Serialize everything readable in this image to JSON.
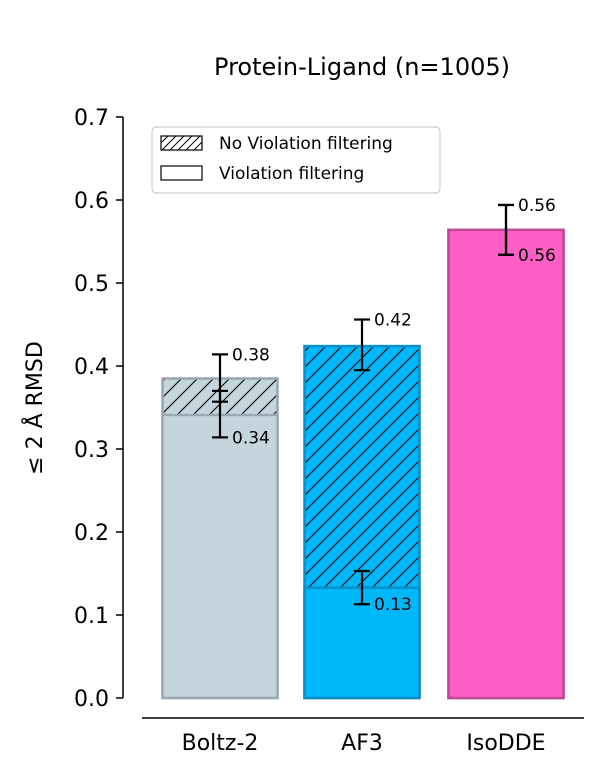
{
  "chart_data": {
    "type": "bar",
    "title": "Protein-Ligand (n=1005)",
    "xlabel": "",
    "ylabel": "≤ 2 Å RMSD",
    "ylim": [
      0,
      0.7
    ],
    "yticks": [
      0.0,
      0.1,
      0.2,
      0.3,
      0.4,
      0.5,
      0.6,
      0.7
    ],
    "ytick_labels": [
      "0.0",
      "0.1",
      "0.2",
      "0.3",
      "0.4",
      "0.5",
      "0.6",
      "0.7"
    ],
    "categories": [
      "Boltz-2",
      "AF3",
      "IsoDDE"
    ],
    "colors": [
      "#c5d5de",
      "#00b7fa",
      "#fe5fc6"
    ],
    "edge_colors": [
      "#9aa9b1",
      "#0a8ec8",
      "#c04a97"
    ],
    "series": [
      {
        "name": "No Violation filtering",
        "hatch": true,
        "values": [
          0.385,
          0.424,
          0.564
        ],
        "error_low": [
          0.357,
          0.395,
          0.534
        ],
        "error_high": [
          0.414,
          0.456,
          0.594
        ],
        "labels": [
          "0.38",
          "0.42",
          "0.56"
        ]
      },
      {
        "name": "Violation filtering",
        "hatch": false,
        "values": [
          0.341,
          0.133,
          0.564
        ],
        "error_low": [
          0.314,
          0.113,
          0.534
        ],
        "error_high": [
          0.37,
          0.153,
          0.594
        ],
        "labels": [
          "0.34",
          "0.13",
          "0.56"
        ]
      }
    ],
    "legend": {
      "position": "top-left",
      "entries": [
        "No Violation filtering",
        "Violation filtering"
      ]
    }
  }
}
